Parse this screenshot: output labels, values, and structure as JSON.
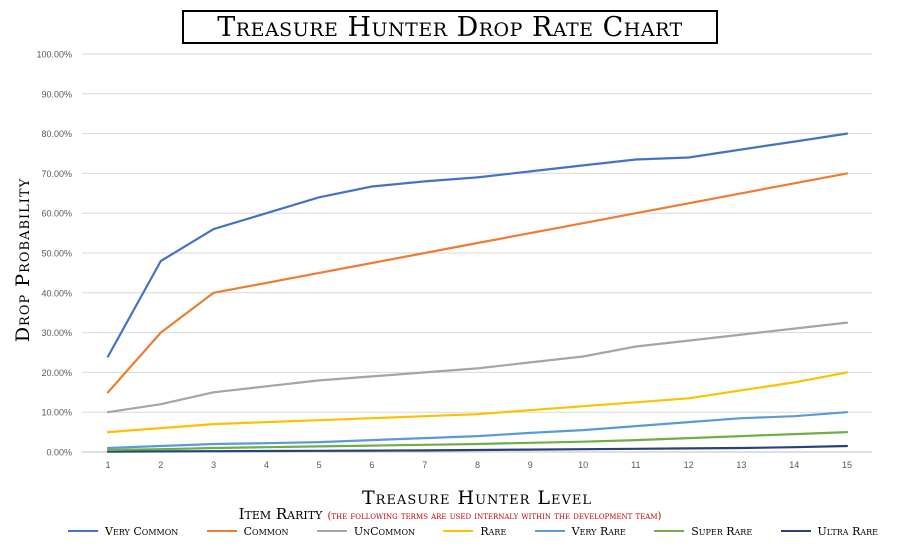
{
  "chart_data": {
    "type": "line",
    "title": "Treasure Hunter Drop Rate Chart",
    "xlabel": "Treasure Hunter Level",
    "ylabel": "Drop Probability",
    "x": [
      1,
      2,
      3,
      4,
      5,
      6,
      7,
      8,
      9,
      10,
      11,
      12,
      13,
      14,
      15
    ],
    "ylim": [
      0,
      100
    ],
    "y_ticks": [
      "0.00%",
      "10.00%",
      "20.00%",
      "30.00%",
      "40.00%",
      "50.00%",
      "60.00%",
      "70.00%",
      "80.00%",
      "90.00%",
      "100.00%"
    ],
    "grid": true,
    "legend_position": "bottom",
    "legend_title": "Item Rarity",
    "legend_note": "(the following terms are used internaly within the development team)",
    "series": [
      {
        "name": "Very Common",
        "color": "#4472c4",
        "values": [
          24,
          48,
          56,
          60,
          64,
          66.7,
          68,
          69,
          70.5,
          72,
          73.5,
          74,
          76,
          78,
          80
        ]
      },
      {
        "name": "Common",
        "color": "#ed7d31",
        "values": [
          15,
          30,
          40,
          42.5,
          45,
          47.5,
          50,
          52.5,
          55,
          57.5,
          60,
          62.5,
          65,
          67.5,
          70
        ]
      },
      {
        "name": "UnCommon",
        "color": "#a5a5a5",
        "values": [
          10,
          12,
          15,
          16.5,
          18,
          19,
          20,
          21,
          22.5,
          24,
          26.5,
          28,
          29.5,
          31,
          32.5
        ]
      },
      {
        "name": "Rare",
        "color": "#ffc000",
        "values": [
          5,
          6,
          7,
          7.5,
          8,
          8.5,
          9,
          9.5,
          10.5,
          11.5,
          12.5,
          13.5,
          15.5,
          17.5,
          20
        ]
      },
      {
        "name": "Very Rare",
        "color": "#5b9bd5",
        "values": [
          1,
          1.5,
          2,
          2.2,
          2.5,
          3,
          3.5,
          4,
          4.8,
          5.5,
          6.5,
          7.5,
          8.5,
          9,
          10
        ]
      },
      {
        "name": "Super Rare",
        "color": "#70ad47",
        "values": [
          0.5,
          0.7,
          1,
          1.2,
          1.4,
          1.6,
          1.8,
          2,
          2.3,
          2.6,
          3,
          3.5,
          4,
          4.5,
          5
        ]
      },
      {
        "name": "Ultra Rare",
        "color": "#264478",
        "values": [
          0.1,
          0.15,
          0.2,
          0.25,
          0.3,
          0.35,
          0.4,
          0.5,
          0.6,
          0.7,
          0.8,
          0.9,
          1,
          1.2,
          1.5
        ]
      }
    ]
  }
}
